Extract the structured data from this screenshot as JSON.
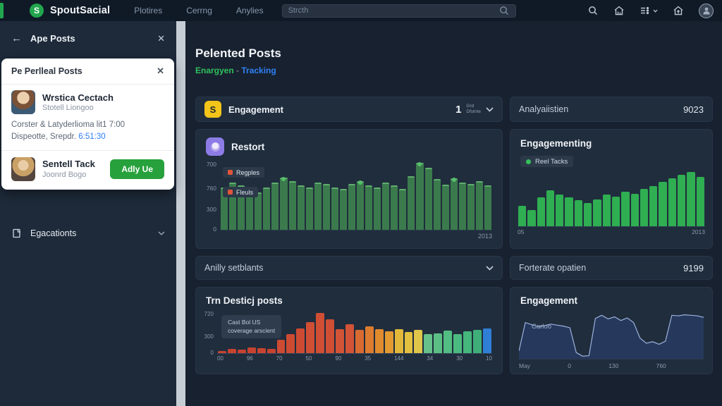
{
  "topbar": {
    "logo_glyph": "S",
    "brand": "SpoutSacial",
    "nav": [
      {
        "label": "Plotires"
      },
      {
        "label": "Cerrng"
      },
      {
        "label": "Anylies"
      }
    ],
    "search_placeholder": "Strcth"
  },
  "sidebar": {
    "header": {
      "title": "Ape Posts"
    },
    "card": {
      "title": "Pe Perlleal Posts",
      "users": [
        {
          "name": "Wrstica Cectach",
          "subtitle": "Stotell Liongoo"
        },
        {
          "name": "Sentell Tack",
          "subtitle": "Joonrd Bogo",
          "button_label": "Adly Ue"
        }
      ],
      "desc_line1": "Corster & Latyderlioma lit1 7:00",
      "desc_line2": "Dispeotte, Srepdr. ",
      "desc_time": "6:51:30"
    },
    "section_label": "Egacationts"
  },
  "main": {
    "title": "Pelented Posts",
    "subtitle": {
      "left": "Enargyen",
      "sep": " - ",
      "right": "Tracking"
    },
    "engagement_header": {
      "icon_glyph": "S",
      "label": "Engagement",
      "count": "1",
      "filter_line1": "Grd",
      "filter_line2": "Dfstnte"
    },
    "analytics_header": {
      "label": "Analyaiistien",
      "value": "9023"
    },
    "restort": {
      "title": "Restort"
    },
    "engagementing": {
      "title": "Engagementing"
    },
    "anally_header": {
      "label": "Anilly setblants"
    },
    "forterate_header": {
      "label": "Forterate opatien",
      "value": "9199"
    },
    "top_posts": {
      "title": "Trn Desticj posts"
    },
    "engagement_bottom": {
      "title": "Engagement"
    }
  },
  "colors": {
    "brand_green": "#22a64d",
    "follow_green": "#27a13c",
    "subtitle_green": "#2fc15e",
    "link_blue": "#2f7ef2",
    "tracking_blue": "#2f81f7",
    "accent_yellow": "#f3c419",
    "accent_purple": "#8d7ce6",
    "bar_green": "#2fae52",
    "area_green": "#3b7a4d",
    "legend_red": "#e0553a"
  },
  "chart_data": [
    {
      "id": "restort-area",
      "type": "bar",
      "style": "area-columns",
      "legend": [
        "Regples",
        "Fleuls"
      ],
      "legend_marker_color": "#e0553a",
      "y_ticks": [
        "700",
        "760",
        "300",
        "0"
      ],
      "ylim": [
        0,
        760
      ],
      "x_end_label": "2013",
      "color": "#3b7a4d",
      "bar_top": "#5fae6e",
      "dot_color": "#56c06a",
      "dot_indices": [
        7,
        16,
        23,
        27
      ],
      "values": [
        52,
        58,
        54,
        48,
        46,
        52,
        58,
        64,
        60,
        54,
        52,
        58,
        56,
        52,
        50,
        56,
        60,
        54,
        52,
        58,
        54,
        50,
        66,
        82,
        76,
        62,
        55,
        63,
        58,
        56,
        60,
        54
      ]
    },
    {
      "id": "engagementing-bars",
      "type": "bar",
      "legend": [
        "Reel Tacks"
      ],
      "legend_marker_color": "#35c05c",
      "x_ticks": [
        "05",
        "2013"
      ],
      "color": "#2fae52",
      "values": [
        36,
        28,
        50,
        63,
        56,
        51,
        46,
        41,
        47,
        55,
        52,
        60,
        57,
        65,
        71,
        78,
        84,
        91,
        96,
        87
      ]
    },
    {
      "id": "top-posts-bars",
      "type": "bar",
      "y_ticks": [
        "720",
        "300",
        "0"
      ],
      "x_ticks": [
        "00",
        "96",
        "70",
        "50",
        "90",
        "35",
        "144",
        "34",
        "30",
        "10"
      ],
      "tooltip": [
        "Cast Bol US",
        "coverage arscient"
      ],
      "values": [
        6,
        10,
        8,
        14,
        12,
        10,
        34,
        48,
        62,
        78,
        100,
        85,
        60,
        72,
        58,
        66,
        60,
        54,
        60,
        52,
        58,
        48,
        50,
        56,
        48,
        54,
        58,
        62
      ],
      "colors": [
        "#c8432f",
        "#c8432f",
        "#c8432f",
        "#c8432f",
        "#c8432f",
        "#c8432f",
        "#cd4a33",
        "#cd4a33",
        "#cd4a33",
        "#d04e34",
        "#d04e34",
        "#d04e34",
        "#d25336",
        "#d25336",
        "#d96a31",
        "#dd7b2f",
        "#e08a2e",
        "#e29a31",
        "#e2b83a",
        "#e2c040",
        "#dfc54a",
        "#66c28a",
        "#5bbf85",
        "#52bd82",
        "#4cba80",
        "#45b67c",
        "#3fae79",
        "#2f7fd6"
      ]
    },
    {
      "id": "engagement-area",
      "type": "area",
      "inner_label": "Carloo",
      "x_ticks": [
        "May",
        "0",
        "130",
        "760"
      ],
      "color_fill": "#26395c",
      "color_line": "#9db1dd",
      "values": [
        15,
        70,
        66,
        62,
        64,
        67,
        65,
        63,
        60,
        12,
        5,
        6,
        78,
        84,
        77,
        81,
        74,
        79,
        70,
        40,
        30,
        33,
        28,
        34,
        84,
        83,
        85,
        84,
        83,
        80
      ]
    }
  ]
}
